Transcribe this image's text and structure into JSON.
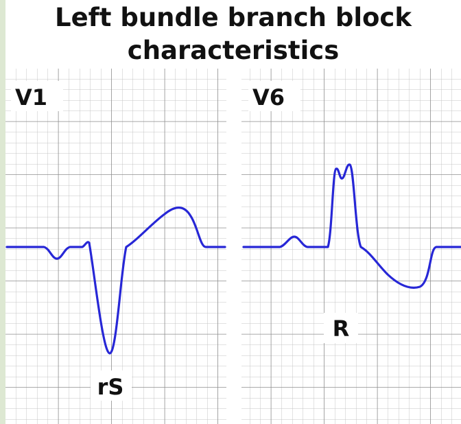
{
  "title_lines": [
    "Left bundle branch block",
    "characteristics"
  ],
  "panels": [
    {
      "lead": "V1",
      "annotation": "rS"
    },
    {
      "lead": "V6",
      "annotation": "R"
    }
  ]
}
